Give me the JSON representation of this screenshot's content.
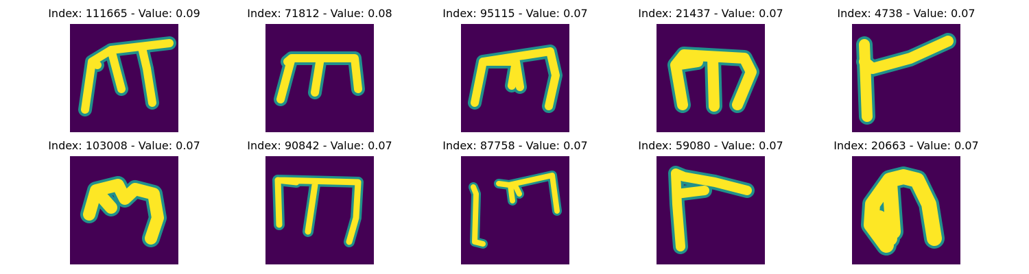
{
  "panels": [
    {
      "title": "Index: 111665 - Value: 0.09",
      "glyph": "m-tall-icon"
    },
    {
      "title": "Index: 71812 - Value: 0.08",
      "glyph": "m-squat-icon"
    },
    {
      "title": "Index: 95115 - Value: 0.07",
      "glyph": "m-bar-icon"
    },
    {
      "title": "Index: 21437 - Value: 0.07",
      "glyph": "m-block-icon"
    },
    {
      "title": "Index: 4738 - Value: 0.07",
      "glyph": "flag-stroke-icon"
    },
    {
      "title": "Index: 103008 - Value: 0.07",
      "glyph": "m-round-icon"
    },
    {
      "title": "Index: 90842 - Value: 0.07",
      "glyph": "m-thin-icon"
    },
    {
      "title": "Index: 87758 - Value: 0.07",
      "glyph": "bracket-m-icon"
    },
    {
      "title": "Index: 59080 - Value: 0.07",
      "glyph": "corner-stroke-icon"
    },
    {
      "title": "Index: 20663 - Value: 0.07",
      "glyph": "arch-stroke-icon"
    }
  ],
  "colors": {
    "background": "#440154",
    "edge": "#21918c",
    "mid": "#5ec962",
    "stroke": "#fde725"
  }
}
